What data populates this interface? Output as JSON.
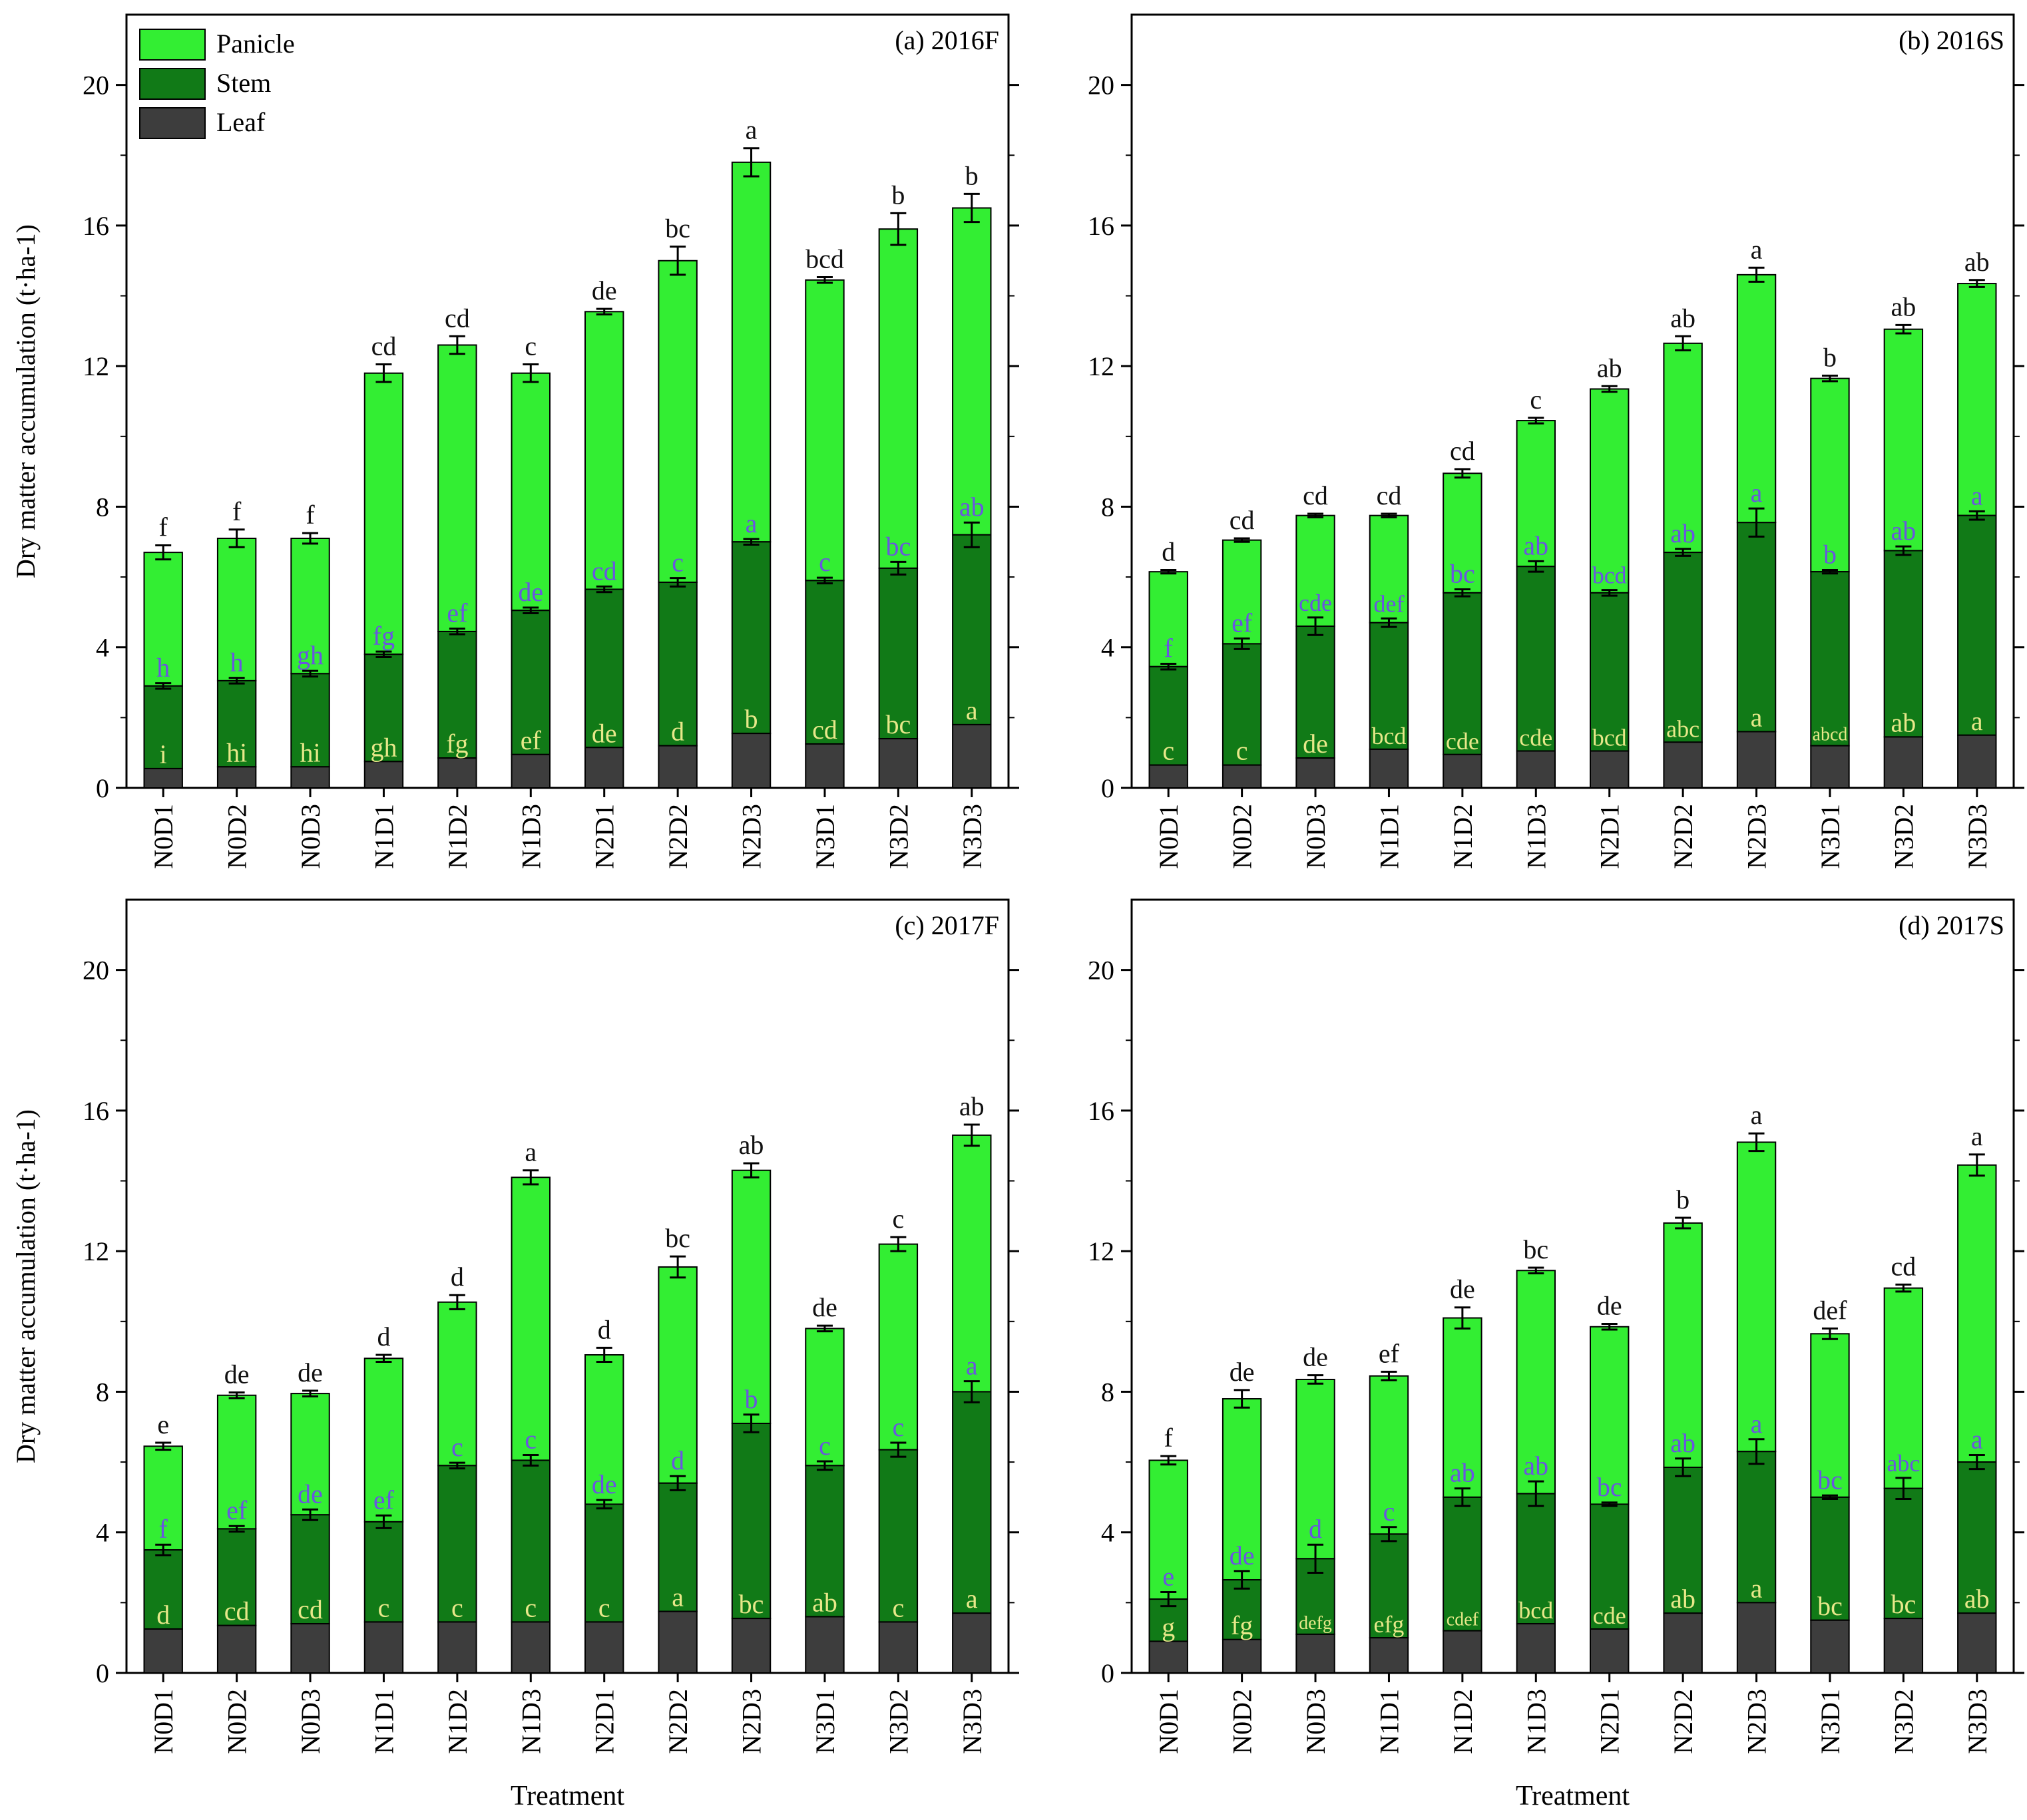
{
  "colors": {
    "panicle": "#33ee33",
    "stem": "#117a17",
    "leaf": "#3d3d3d",
    "leaf_letter": "#e8e88a",
    "stem_letter": "#6a55e0",
    "top_letter": "#111111"
  },
  "legend": {
    "panicle": "Panicle",
    "stem": "Stem",
    "leaf": "Leaf"
  },
  "chart_data": [
    {
      "type": "bar",
      "title": "(a) 2016F",
      "xlabel": "",
      "ylabel": "Dry matter accumulation (t·ha-1)",
      "ylim": [
        0,
        22
      ],
      "yticks": [
        0,
        4,
        8,
        12,
        16,
        20
      ],
      "categories": [
        "N0D1",
        "N0D2",
        "N0D3",
        "N1D1",
        "N1D2",
        "N1D3",
        "N2D1",
        "N2D2",
        "N2D3",
        "N3D1",
        "N3D2",
        "N3D3"
      ],
      "series": [
        {
          "name": "Leaf",
          "values": [
            0.55,
            0.6,
            0.6,
            0.75,
            0.85,
            0.95,
            1.15,
            1.2,
            1.55,
            1.25,
            1.4,
            1.8
          ],
          "letters": [
            "i",
            "hi",
            "hi",
            "gh",
            "fg",
            "ef",
            "de",
            "d",
            "b",
            "cd",
            "bc",
            "a"
          ]
        },
        {
          "name": "Stem",
          "cumulative": [
            2.9,
            3.05,
            3.25,
            3.8,
            4.45,
            5.05,
            5.65,
            5.85,
            7.0,
            5.9,
            6.25,
            7.2
          ],
          "letters": [
            "h",
            "h",
            "gh",
            "fg",
            "ef",
            "de",
            "cd",
            "c",
            "a",
            "c",
            "bc",
            "ab"
          ]
        },
        {
          "name": "Panicle",
          "total": [
            6.7,
            7.1,
            7.1,
            11.8,
            12.6,
            11.8,
            13.55,
            15.0,
            17.8,
            14.45,
            15.9,
            16.5
          ],
          "total_err": [
            0.2,
            0.25,
            0.15,
            0.25,
            0.25,
            0.25,
            0.08,
            0.4,
            0.4,
            0.08,
            0.45,
            0.4
          ],
          "letters": [
            "f",
            "f",
            "f",
            "cd",
            "cd",
            "c",
            "de",
            "bc",
            "a",
            "bcd",
            "b",
            "b"
          ]
        }
      ],
      "stem_err": [
        0.08,
        0.08,
        0.08,
        0.08,
        0.08,
        0.08,
        0.08,
        0.12,
        0.08,
        0.08,
        0.18,
        0.35
      ],
      "legend_position": "top-left"
    },
    {
      "type": "bar",
      "title": "(b) 2016S",
      "xlabel": "",
      "ylabel": "",
      "ylim": [
        0,
        22
      ],
      "yticks": [
        0,
        4,
        8,
        12,
        16,
        20
      ],
      "categories": [
        "N0D1",
        "N0D2",
        "N0D3",
        "N1D1",
        "N1D2",
        "N1D3",
        "N2D1",
        "N2D2",
        "N2D3",
        "N3D1",
        "N3D2",
        "N3D3"
      ],
      "series": [
        {
          "name": "Leaf",
          "values": [
            0.65,
            0.65,
            0.85,
            1.1,
            0.95,
            1.05,
            1.05,
            1.3,
            1.6,
            1.2,
            1.45,
            1.5
          ],
          "letters": [
            "c",
            "c",
            "de",
            "bcd",
            "cde",
            "cde",
            "bcd",
            "abc",
            "a",
            "abcd",
            "ab",
            "a"
          ]
        },
        {
          "name": "Stem",
          "cumulative": [
            3.45,
            4.1,
            4.6,
            4.7,
            5.55,
            6.3,
            5.55,
            6.7,
            7.55,
            6.15,
            6.75,
            7.75
          ],
          "letters": [
            "f",
            "ef",
            "cde",
            "def",
            "bc",
            "ab",
            "bcd",
            "ab",
            "a",
            "b",
            "ab",
            "a"
          ]
        },
        {
          "name": "Panicle",
          "total": [
            6.15,
            7.05,
            7.75,
            7.75,
            8.95,
            10.45,
            11.35,
            12.65,
            14.6,
            11.65,
            13.05,
            14.35
          ],
          "total_err": [
            0.05,
            0.05,
            0.05,
            0.05,
            0.12,
            0.08,
            0.08,
            0.2,
            0.2,
            0.08,
            0.12,
            0.1
          ],
          "letters": [
            "d",
            "cd",
            "cd",
            "cd",
            "cd",
            "c",
            "ab",
            "ab",
            "a",
            "b",
            "ab",
            "ab"
          ]
        }
      ],
      "stem_err": [
        0.08,
        0.15,
        0.25,
        0.12,
        0.1,
        0.15,
        0.08,
        0.1,
        0.4,
        0.05,
        0.12,
        0.12
      ]
    },
    {
      "type": "bar",
      "title": "(c) 2017F",
      "xlabel": "Treatment",
      "ylabel": "Dry matter accumulation (t·ha-1)",
      "ylim": [
        0,
        22
      ],
      "yticks": [
        0,
        4,
        8,
        12,
        16,
        20
      ],
      "categories": [
        "N0D1",
        "N0D2",
        "N0D3",
        "N1D1",
        "N1D2",
        "N1D3",
        "N2D1",
        "N2D2",
        "N2D3",
        "N3D1",
        "N3D2",
        "N3D3"
      ],
      "series": [
        {
          "name": "Leaf",
          "values": [
            1.25,
            1.35,
            1.4,
            1.45,
            1.45,
            1.45,
            1.45,
            1.75,
            1.55,
            1.6,
            1.45,
            1.7
          ],
          "letters": [
            "d",
            "cd",
            "cd",
            "c",
            "c",
            "c",
            "c",
            "a",
            "bc",
            "ab",
            "c",
            "a"
          ]
        },
        {
          "name": "Stem",
          "cumulative": [
            3.5,
            4.1,
            4.5,
            4.3,
            5.9,
            6.05,
            4.8,
            5.4,
            7.1,
            5.9,
            6.35,
            8.0
          ],
          "letters": [
            "f",
            "ef",
            "de",
            "ef",
            "c",
            "c",
            "de",
            "d",
            "b",
            "c",
            "c",
            "a"
          ]
        },
        {
          "name": "Panicle",
          "total": [
            6.45,
            7.9,
            7.95,
            8.95,
            10.55,
            14.1,
            9.05,
            11.55,
            14.3,
            9.8,
            12.2,
            15.3
          ],
          "total_err": [
            0.1,
            0.08,
            0.08,
            0.1,
            0.2,
            0.2,
            0.2,
            0.3,
            0.2,
            0.08,
            0.2,
            0.3
          ],
          "letters": [
            "e",
            "de",
            "de",
            "d",
            "d",
            "a",
            "d",
            "bc",
            "ab",
            "de",
            "c",
            "ab"
          ]
        }
      ],
      "stem_err": [
        0.15,
        0.08,
        0.15,
        0.18,
        0.08,
        0.15,
        0.12,
        0.2,
        0.25,
        0.12,
        0.2,
        0.3
      ]
    },
    {
      "type": "bar",
      "title": "(d) 2017S",
      "xlabel": "Treatment",
      "ylabel": "",
      "ylim": [
        0,
        22
      ],
      "yticks": [
        0,
        4,
        8,
        12,
        16,
        20
      ],
      "categories": [
        "N0D1",
        "N0D2",
        "N0D3",
        "N1D1",
        "N1D2",
        "N1D3",
        "N2D1",
        "N2D2",
        "N2D3",
        "N3D1",
        "N3D2",
        "N3D3"
      ],
      "series": [
        {
          "name": "Leaf",
          "values": [
            0.9,
            0.95,
            1.1,
            1.0,
            1.2,
            1.4,
            1.25,
            1.7,
            2.0,
            1.5,
            1.55,
            1.7
          ],
          "letters": [
            "g",
            "fg",
            "defg",
            "efg",
            "cdef",
            "bcd",
            "cde",
            "ab",
            "a",
            "bc",
            "bc",
            "ab"
          ]
        },
        {
          "name": "Stem",
          "cumulative": [
            2.1,
            2.65,
            3.25,
            3.95,
            5.0,
            5.1,
            4.8,
            5.85,
            6.3,
            5.0,
            5.25,
            6.0
          ],
          "letters": [
            "e",
            "de",
            "d",
            "c",
            "ab",
            "ab",
            "bc",
            "ab",
            "a",
            "bc",
            "abc",
            "a"
          ]
        },
        {
          "name": "Panicle",
          "total": [
            6.05,
            7.8,
            8.35,
            8.45,
            10.1,
            11.45,
            9.85,
            12.8,
            15.1,
            9.65,
            10.95,
            14.45
          ],
          "total_err": [
            0.12,
            0.25,
            0.12,
            0.12,
            0.3,
            0.08,
            0.08,
            0.15,
            0.25,
            0.15,
            0.1,
            0.3
          ],
          "letters": [
            "f",
            "de",
            "de",
            "ef",
            "de",
            "bc",
            "de",
            "b",
            "a",
            "def",
            "cd",
            "a"
          ]
        }
      ],
      "stem_err": [
        0.2,
        0.25,
        0.4,
        0.2,
        0.25,
        0.35,
        0.05,
        0.25,
        0.35,
        0.05,
        0.3,
        0.2
      ]
    }
  ]
}
